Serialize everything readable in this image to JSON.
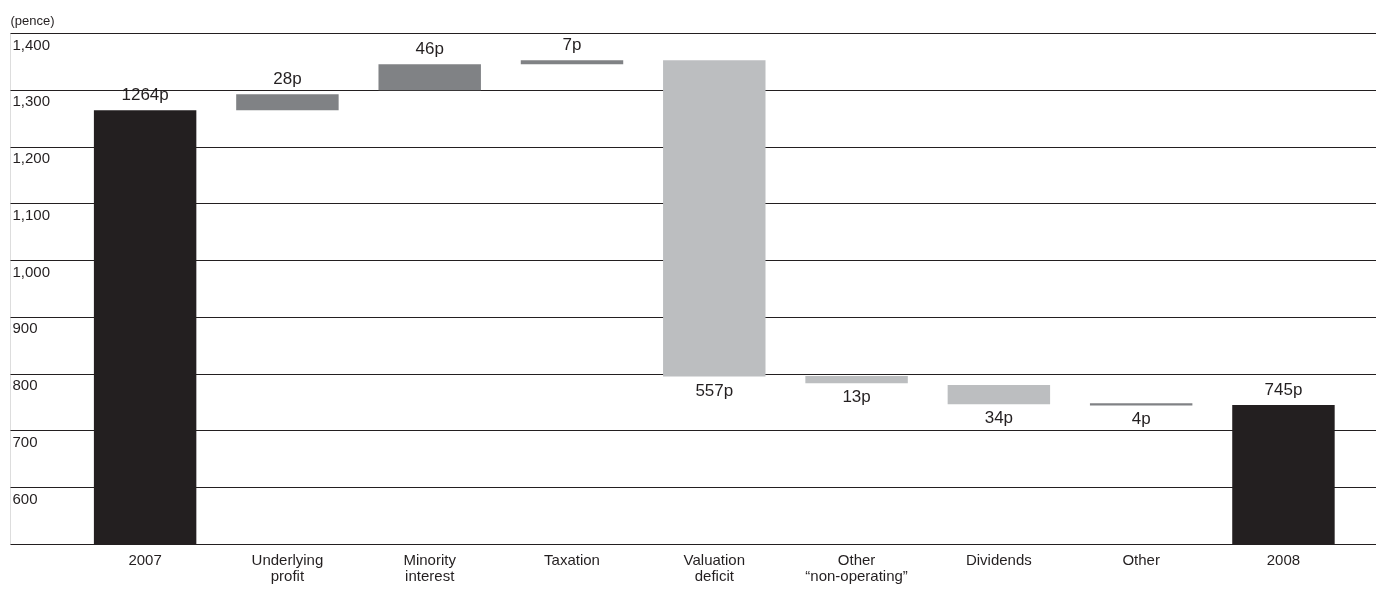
{
  "chart_data": {
    "type": "bar",
    "ylabel": "(pence)",
    "categories": [
      "2007",
      "Underlying profit",
      "Minority interest",
      "Taxation",
      "Valuation deficit",
      "Other “non-operating”",
      "Dividends",
      "Other",
      "2008"
    ],
    "base": [
      500,
      1264,
      1299,
      1345,
      1352,
      796,
      780,
      748,
      500
    ],
    "values": [
      764,
      28,
      46,
      7,
      -557,
      -13,
      -34,
      -4,
      245
    ],
    "colors": [
      "#231f20",
      "#808285",
      "#808285",
      "#808285",
      "#bcbec0",
      "#bcbec0",
      "#bcbec0",
      "#808285",
      "#231f20"
    ],
    "value_labels": [
      "1264p",
      "28p",
      "46p",
      "7p",
      "557p",
      "13p",
      "34p",
      "4p",
      "745p"
    ],
    "ylim": [
      500,
      1400
    ],
    "yticks": [
      {
        "value": 600,
        "label": "600"
      },
      {
        "value": 700,
        "label": "700"
      },
      {
        "value": 800,
        "label": "800"
      },
      {
        "value": 900,
        "label": "900"
      },
      {
        "value": 1000,
        "label": "1,000"
      },
      {
        "value": 1100,
        "label": "1,100"
      },
      {
        "value": 1200,
        "label": "1,200"
      },
      {
        "value": 1300,
        "label": "1,300"
      },
      {
        "value": 1400,
        "label": "1,400"
      }
    ],
    "grid": "y"
  }
}
